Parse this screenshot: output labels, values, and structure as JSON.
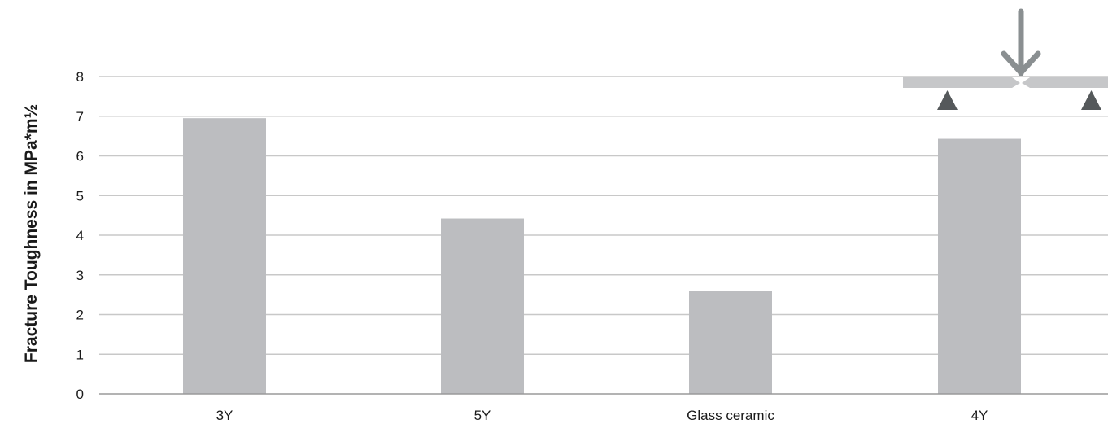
{
  "chart_data": {
    "type": "bar",
    "title": "",
    "xlabel": "",
    "ylabel": "Fracture Toughness in MPa*m½",
    "categories": [
      "3Y",
      "5Y",
      "Glass ceramic",
      "4Y"
    ],
    "series": [
      {
        "values": [
          6.95,
          4.42,
          2.6,
          6.43
        ]
      }
    ],
    "ylim": [
      0,
      8
    ],
    "yticks": [
      0,
      1,
      2,
      3,
      4,
      5,
      6,
      7,
      8
    ],
    "grid": true,
    "colors": {
      "bar": "#bcbdc0",
      "grid": "#c8c8c8",
      "axis": "#9a9a9a",
      "text": "#1a1a1a",
      "icon_beam": "#c6c7c9",
      "icon_arrow": "#8a8f91",
      "icon_support": "#55595b"
    }
  },
  "icons": {
    "bending_test": "three-point-bending-test-icon"
  }
}
